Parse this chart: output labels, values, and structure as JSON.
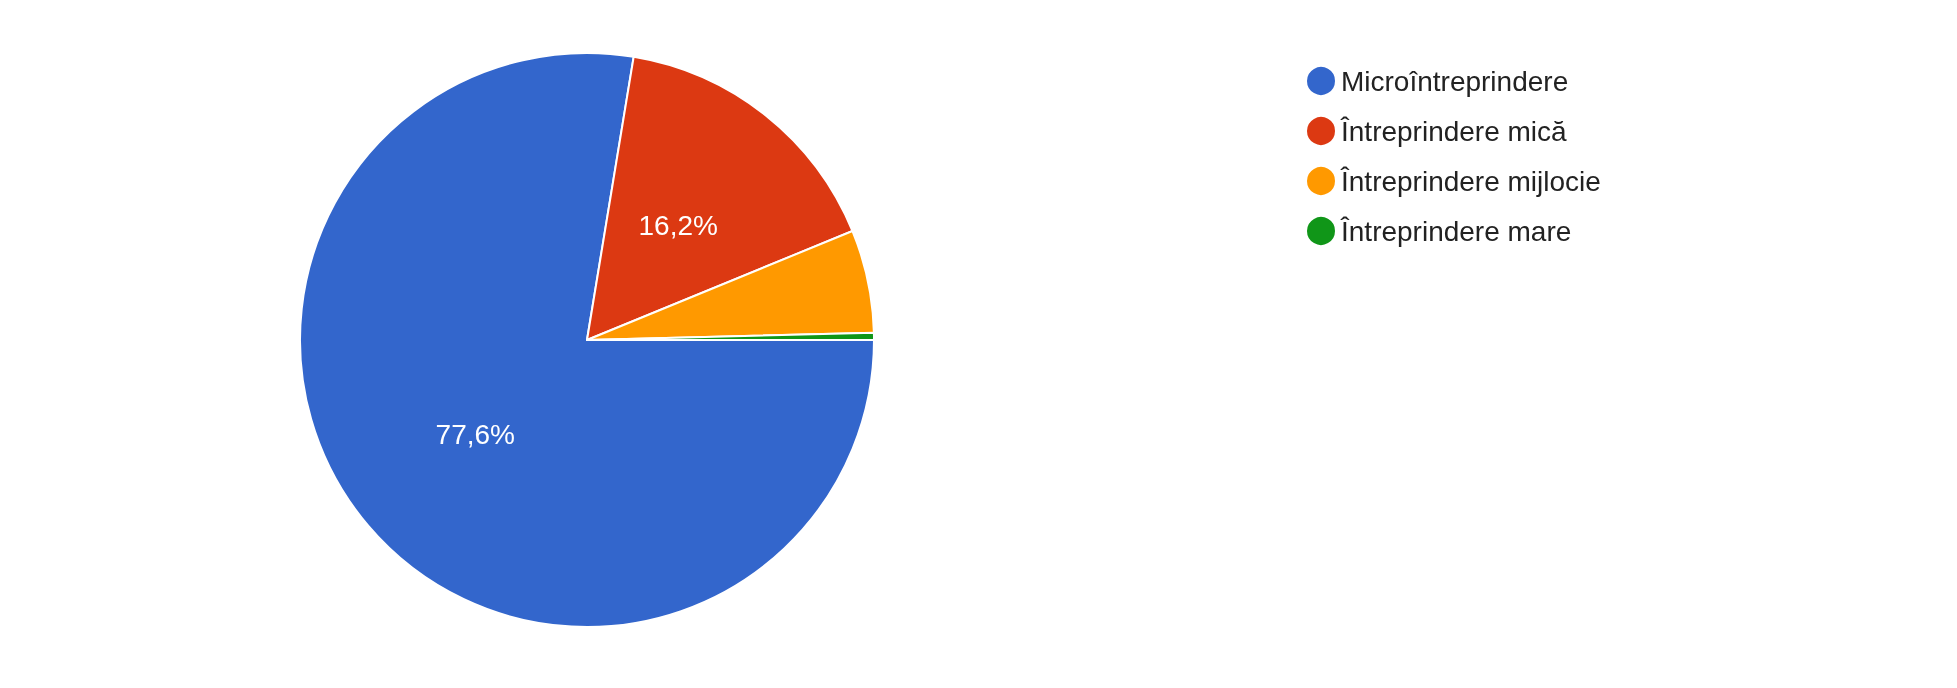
{
  "chart_data": {
    "type": "pie",
    "categories": [
      "Microîntreprindere",
      "Întreprindere mică",
      "Întreprindere mijlocie",
      "Întreprindere mare"
    ],
    "values": [
      77.6,
      16.2,
      5.8,
      0.4
    ],
    "colors": [
      "#3366cc",
      "#dc3912",
      "#ff9900",
      "#109618"
    ],
    "value_labels": [
      "77,6%",
      "16,2%",
      null,
      null
    ],
    "legend": "top right"
  }
}
